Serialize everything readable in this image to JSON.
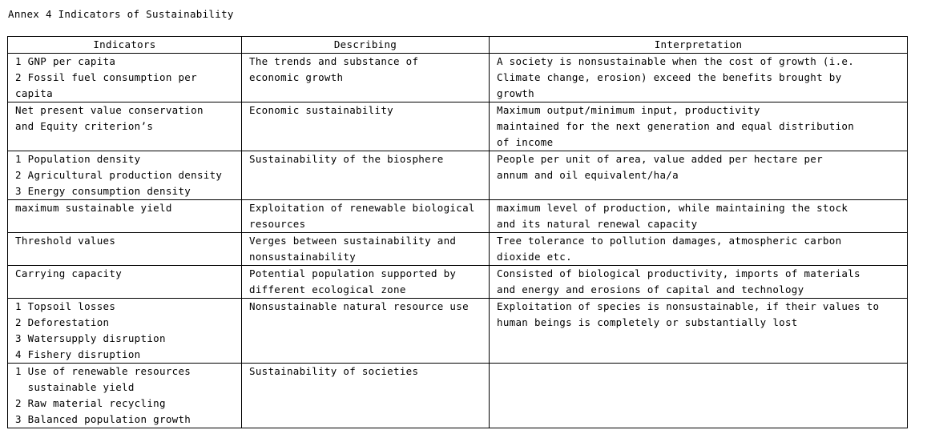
{
  "title": "Annex 4 Indicators of Sustainability",
  "table": {
    "header": [
      "Indicators",
      "Describing",
      "Interpretation"
    ],
    "rows": [
      [
        [
          "1 GNP per capita",
          "2 Fossil fuel consumption per",
          "capita"
        ],
        [
          "The trends and substance of",
          "economic growth"
        ],
        [
          "A society is nonsustainable when the cost of growth (i.e.",
          "Climate change, erosion) exceed the benefits brought by",
          "growth"
        ]
      ],
      [
        [
          "Net present value conservation",
          "and Equity criterion’s"
        ],
        [
          "Economic sustainability"
        ],
        [
          "Maximum output/minimum input, productivity",
          "maintained for the next generation and equal distribution",
          "of income"
        ]
      ],
      [
        [
          "1 Population density",
          "2 Agricultural production density",
          "3 Energy consumption density"
        ],
        [
          "Sustainability of the biosphere"
        ],
        [
          "People per unit of area, value added per hectare per",
          "annum and oil equivalent/ha/a"
        ]
      ],
      [
        [
          "maximum sustainable yield"
        ],
        [
          "Exploitation of renewable biological",
          "resources"
        ],
        [
          "maximum level of production, while maintaining the stock",
          "and its natural renewal capacity"
        ]
      ],
      [
        [
          "Threshold values"
        ],
        [
          "Verges between sustainability and",
          "nonsustainability"
        ],
        [
          "Tree tolerance to pollution damages, atmospheric carbon",
          "dioxide etc."
        ]
      ],
      [
        [
          "Carrying capacity"
        ],
        [
          "Potential population supported by",
          "different ecological zone"
        ],
        [
          "Consisted of biological productivity, imports of materials",
          "and energy and erosions of capital and technology"
        ]
      ],
      [
        [
          "1 Topsoil losses",
          "2 Deforestation",
          "3 Watersupply disruption",
          "4 Fishery disruption"
        ],
        [
          "Nonsustainable natural resource use"
        ],
        [
          "Exploitation of species is nonsustainable, if their values to",
          "human beings is completely or substantially lost"
        ]
      ],
      [
        [
          "1 Use of renewable resources",
          "  sustainable yield",
          "2 Raw material recycling",
          "3 Balanced population growth"
        ],
        [
          "Sustainability of societies"
        ],
        []
      ]
    ]
  }
}
